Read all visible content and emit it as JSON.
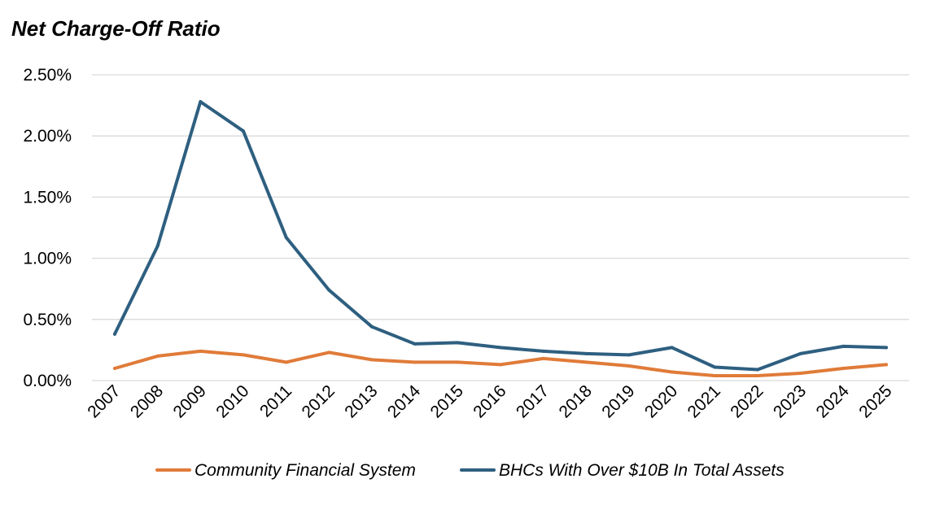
{
  "chart_data": {
    "type": "line",
    "title": "Net Charge-Off Ratio",
    "xlabel": "",
    "ylabel": "",
    "ylim": [
      0,
      0.025
    ],
    "y_ticks": [
      0,
      0.005,
      0.01,
      0.015,
      0.02,
      0.025
    ],
    "y_tick_labels": [
      "0.00%",
      "0.50%",
      "1.00%",
      "1.50%",
      "2.00%",
      "2.50%"
    ],
    "grid": true,
    "legend_position": "bottom",
    "categories": [
      "2007",
      "2008",
      "2009",
      "2010",
      "2011",
      "2012",
      "2013",
      "2014",
      "2015",
      "2016",
      "2017",
      "2018",
      "2019",
      "2020",
      "2021",
      "2022",
      "2023",
      "2024",
      "2025"
    ],
    "series": [
      {
        "name": "Community Financial System",
        "color": "#E07B39",
        "values": [
          0.001,
          0.002,
          0.0024,
          0.0021,
          0.0015,
          0.0023,
          0.0017,
          0.0015,
          0.0015,
          0.0013,
          0.0018,
          0.0015,
          0.0012,
          0.0007,
          0.0004,
          0.0004,
          0.0006,
          0.001,
          0.0013
        ]
      },
      {
        "name": "BHCs With Over $10B In Total Assets",
        "color": "#2E5F80",
        "values": [
          0.0038,
          0.011,
          0.0228,
          0.0204,
          0.0117,
          0.0074,
          0.0044,
          0.003,
          0.0031,
          0.0027,
          0.0024,
          0.0022,
          0.0021,
          0.0027,
          0.0011,
          0.0009,
          0.0022,
          0.0028,
          0.0027
        ]
      }
    ]
  }
}
